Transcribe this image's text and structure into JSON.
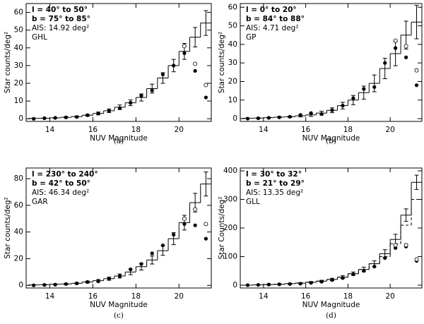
{
  "chart_data": [
    {
      "type": "step",
      "panel_label": "(a)",
      "xlabel": "NUV Magnitude",
      "ylabel": "Star counts/deg²",
      "annotations": [
        "l = 40° to 50°",
        "b = 75° to 85°",
        "AIS: 14.92 deg²",
        "GHL"
      ],
      "bins": [
        13,
        13.5,
        14,
        14.5,
        15,
        15.5,
        16,
        16.5,
        17,
        17.5,
        18,
        18.5,
        19,
        19.5,
        20,
        20.5,
        21,
        21.5
      ],
      "steps": [
        0.2,
        0.3,
        0.5,
        0.8,
        1.2,
        2,
        3,
        4.5,
        6.5,
        9,
        12,
        17,
        23,
        30,
        38,
        46,
        54
      ],
      "errors": [
        0.1,
        0.1,
        0.2,
        0.3,
        0.4,
        0.5,
        0.8,
        1,
        1.3,
        1.6,
        2,
        2.5,
        3,
        3.5,
        4.5,
        5.5,
        7
      ],
      "filled_points": [
        0,
        0.3,
        0.5,
        0.8,
        1,
        2,
        3,
        4.5,
        6,
        9,
        13,
        16,
        25,
        30,
        37,
        27,
        12
      ],
      "open_points": [
        null,
        null,
        null,
        null,
        null,
        null,
        null,
        null,
        null,
        null,
        null,
        null,
        null,
        null,
        41,
        31,
        19
      ],
      "xlim": [
        12.9,
        21.5
      ],
      "xticks": [
        14,
        16,
        18,
        20
      ],
      "ylim": [
        -1.5,
        65
      ],
      "yticks": [
        0,
        10,
        20,
        30,
        40,
        50,
        60
      ]
    },
    {
      "type": "step",
      "panel_label": "(b)",
      "xlabel": "NUV Magnitude",
      "ylabel": "Star counts/deg²",
      "annotations": [
        "l = 0° to 20°",
        "b = 84° to 88°",
        "AIS: 4.71 deg²",
        "GP"
      ],
      "bins": [
        13,
        13.5,
        14,
        14.5,
        15,
        15.5,
        16,
        16.5,
        17,
        17.5,
        18,
        18.5,
        19,
        19.5,
        20,
        20.5,
        21,
        21.5
      ],
      "steps": [
        0.2,
        0.3,
        0.5,
        0.8,
        1,
        1.5,
        2,
        3,
        4.5,
        7,
        10,
        14,
        19,
        27,
        35,
        45,
        52
      ],
      "errors": [
        0.1,
        0.2,
        0.2,
        0.3,
        0.4,
        0.6,
        0.8,
        1,
        1.3,
        1.8,
        2.5,
        3.5,
        4.5,
        5.5,
        6.5,
        7.5,
        9
      ],
      "filled_points": [
        0,
        0.2,
        0.4,
        0.7,
        1,
        2,
        3,
        2.5,
        4.5,
        7,
        11,
        16,
        17,
        30,
        38,
        33,
        18
      ],
      "open_points": [
        null,
        null,
        null,
        null,
        null,
        null,
        null,
        null,
        null,
        null,
        null,
        null,
        null,
        null,
        42,
        39,
        26
      ],
      "xlim": [
        12.9,
        21.5
      ],
      "xticks": [
        14,
        16,
        18,
        20
      ],
      "ylim": [
        -1.5,
        62
      ],
      "yticks": [
        0,
        10,
        20,
        30,
        40,
        50,
        60
      ]
    },
    {
      "type": "step",
      "panel_label": "(c)",
      "xlabel": "NUV Magnitude",
      "ylabel": "Star counts/deg²",
      "annotations": [
        "l = 230° to 240°",
        "b = 42° to 50°",
        "AIS: 46.34 deg²",
        "GAR"
      ],
      "bins": [
        13,
        13.5,
        14,
        14.5,
        15,
        15.5,
        16,
        16.5,
        17,
        17.5,
        18,
        18.5,
        19,
        19.5,
        20,
        20.5,
        21,
        21.5
      ],
      "steps": [
        0.3,
        0.5,
        0.8,
        1,
        1.5,
        2.5,
        3.5,
        5,
        7,
        10,
        14,
        19,
        26,
        35,
        47,
        62,
        76
      ],
      "errors": [
        0.1,
        0.2,
        0.3,
        0.4,
        0.5,
        0.7,
        0.9,
        1.2,
        1.5,
        2,
        2.5,
        3,
        3.5,
        4.5,
        5.5,
        7,
        9
      ],
      "filled_points": [
        0,
        0.3,
        0.5,
        1,
        1.5,
        2.5,
        3,
        5,
        7,
        12,
        16,
        24,
        30,
        38,
        46,
        45,
        35
      ],
      "open_points": [
        null,
        null,
        null,
        null,
        null,
        null,
        null,
        null,
        null,
        null,
        null,
        null,
        null,
        null,
        50,
        57,
        46
      ],
      "xlim": [
        12.9,
        21.5
      ],
      "xticks": [
        14,
        16,
        18,
        20
      ],
      "ylim": [
        -2,
        88
      ],
      "yticks": [
        0,
        20,
        40,
        60,
        80
      ]
    },
    {
      "type": "step",
      "panel_label": "(d)",
      "xlabel": "NUV Magnitude",
      "ylabel": "Star Counts/deg²",
      "annotations": [
        "l = 30° to 32°",
        "b = 21° to 29°",
        "AIS: 13.35 deg²",
        "GLL"
      ],
      "bins": [
        13,
        13.5,
        14,
        14.5,
        15,
        15.5,
        16,
        16.5,
        17,
        17.5,
        18,
        18.5,
        19,
        19.5,
        20,
        20.5,
        21,
        21.5
      ],
      "steps": [
        0,
        1,
        2,
        3,
        5,
        7,
        10,
        14,
        20,
        28,
        40,
        55,
        75,
        110,
        160,
        245,
        360
      ],
      "dashed_steps": [
        0,
        1,
        2,
        3,
        5,
        7,
        10,
        14,
        20,
        28,
        40,
        55,
        75,
        100,
        145,
        210,
        300
      ],
      "errors": [
        0,
        0.5,
        1,
        1,
        1.5,
        2,
        2.5,
        3,
        4,
        5,
        6,
        8,
        10,
        14,
        18,
        22,
        25
      ],
      "filled_points": [
        0,
        1,
        2,
        3,
        4,
        5,
        8,
        12,
        18,
        25,
        38,
        50,
        65,
        95,
        130,
        135,
        85
      ],
      "open_points": [
        null,
        null,
        null,
        null,
        null,
        null,
        null,
        null,
        null,
        null,
        null,
        null,
        null,
        null,
        140,
        140,
        90
      ],
      "xlim": [
        12.9,
        21.5
      ],
      "xticks": [
        14,
        16,
        18,
        20
      ],
      "ylim": [
        -10,
        410
      ],
      "yticks": [
        0,
        100,
        200,
        300,
        400
      ]
    }
  ]
}
